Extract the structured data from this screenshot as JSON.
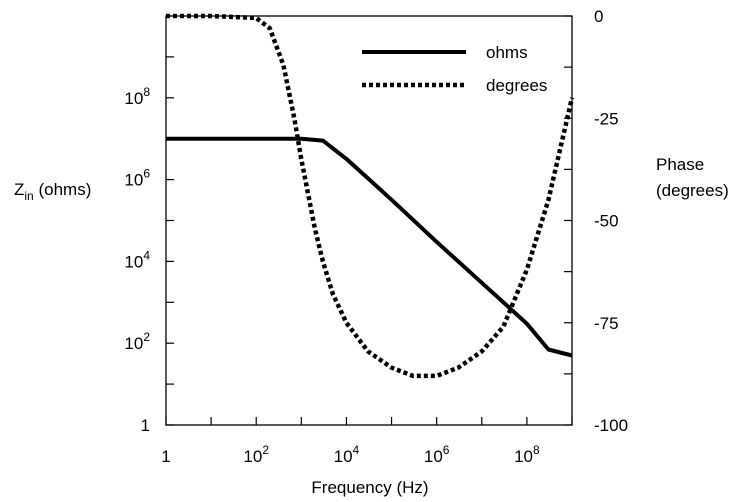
{
  "chart_data": {
    "type": "line",
    "xlabel": "Frequency (Hz)",
    "ylabel_left": {
      "main": "Z",
      "sub": "in",
      "rest": " (ohms)"
    },
    "ylabel_right": [
      "Phase",
      "(degrees)"
    ],
    "x_scale": "log10",
    "xlim": [
      1,
      1000000000
    ],
    "x_ticks": [
      {
        "value": 1,
        "base": "1",
        "exp": ""
      },
      {
        "value": 100,
        "base": "10",
        "exp": "2"
      },
      {
        "value": 10000,
        "base": "10",
        "exp": "4"
      },
      {
        "value": 1000000,
        "base": "10",
        "exp": "6"
      },
      {
        "value": 100000000,
        "base": "10",
        "exp": "8"
      }
    ],
    "y_left_scale": "log10",
    "ylim_left": [
      1,
      10000000000
    ],
    "y_left_ticks": [
      {
        "value": 1,
        "base": "1",
        "exp": ""
      },
      {
        "value": 100,
        "base": "10",
        "exp": "2"
      },
      {
        "value": 10000,
        "base": "10",
        "exp": "4"
      },
      {
        "value": 1000000,
        "base": "10",
        "exp": "6"
      },
      {
        "value": 100000000,
        "base": "10",
        "exp": "8"
      }
    ],
    "ylim_right": [
      -100,
      0
    ],
    "y_right_ticks": [
      {
        "value": 0,
        "label": "0"
      },
      {
        "value": -25,
        "label": "-25"
      },
      {
        "value": -50,
        "label": "-50"
      },
      {
        "value": -75,
        "label": "-75"
      },
      {
        "value": -100,
        "label": "-100"
      }
    ],
    "legend": {
      "placement": "top-right"
    },
    "series": [
      {
        "name": "ohms",
        "axis": "left",
        "style": "solid",
        "color": "#000000",
        "x": [
          1,
          10,
          100,
          1000,
          3000,
          10000,
          100000,
          1000000,
          10000000,
          100000000,
          300000000,
          1000000000
        ],
        "y": [
          10000000,
          10000000,
          10000000,
          10000000,
          9000000,
          3200000,
          320000,
          30000,
          3000,
          300,
          70,
          50
        ]
      },
      {
        "name": "degrees",
        "axis": "right",
        "style": "dashed",
        "color": "#000000",
        "x": [
          1,
          10,
          100,
          200,
          400,
          700,
          1000,
          2000,
          3000,
          5000,
          10000,
          30000,
          100000,
          300000,
          1000000,
          3000000,
          10000000,
          30000000,
          100000000,
          300000000,
          1000000000
        ],
        "y": [
          0,
          0,
          -0.5,
          -3,
          -12,
          -25,
          -35,
          -52,
          -60,
          -68,
          -75,
          -82,
          -86,
          -88,
          -88,
          -86,
          -82,
          -76,
          -62,
          -45,
          -20
        ]
      }
    ]
  }
}
